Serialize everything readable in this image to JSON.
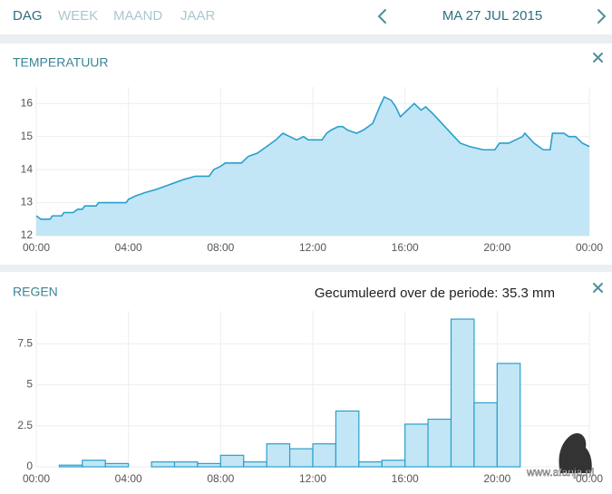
{
  "nav": {
    "tabs": [
      "DAG",
      "WEEK",
      "MAAND",
      "JAAR"
    ],
    "date": "MA 27 JUL 2015"
  },
  "chart_data": [
    {
      "type": "line",
      "title": "TEMPERATUUR",
      "color": "#2a9fcc",
      "fill": "#c2e6f5",
      "grid": true,
      "x": [
        0,
        0.2,
        0.6,
        0.7,
        1.1,
        1.2,
        1.6,
        1.8,
        2.0,
        2.1,
        2.6,
        2.7,
        3.9,
        4.0,
        4.3,
        4.7,
        5.2,
        5.6,
        6.0,
        6.4,
        6.9,
        7.5,
        7.7,
        8.0,
        8.2,
        8.9,
        9.2,
        9.6,
        10.0,
        10.4,
        10.7,
        11.0,
        11.3,
        11.6,
        11.8,
        12.4,
        12.6,
        12.8,
        13.1,
        13.3,
        13.5,
        13.9,
        14.2,
        14.6,
        14.9,
        15.1,
        15.4,
        15.6,
        15.8,
        16.1,
        16.4,
        16.7,
        16.9,
        17.2,
        17.6,
        18.0,
        18.4,
        18.8,
        19.4,
        19.9,
        20.1,
        20.5,
        20.8,
        21.1,
        21.2,
        21.6,
        22.0,
        22.3,
        22.4,
        22.9,
        23.1,
        23.4,
        23.7,
        24.0
      ],
      "series": [
        {
          "name": "Temperatuur",
          "color": "#2a9fcc",
          "values": [
            12.6,
            12.5,
            12.5,
            12.6,
            12.6,
            12.7,
            12.7,
            12.8,
            12.8,
            12.9,
            12.9,
            13.0,
            13.0,
            13.1,
            13.2,
            13.3,
            13.4,
            13.5,
            13.6,
            13.7,
            13.8,
            13.8,
            14.0,
            14.1,
            14.2,
            14.2,
            14.4,
            14.5,
            14.7,
            14.9,
            15.1,
            15.0,
            14.9,
            15.0,
            14.9,
            14.9,
            15.1,
            15.2,
            15.3,
            15.3,
            15.2,
            15.1,
            15.2,
            15.4,
            15.9,
            16.2,
            16.1,
            15.9,
            15.6,
            15.8,
            16.0,
            15.8,
            15.9,
            15.7,
            15.4,
            15.1,
            14.8,
            14.7,
            14.6,
            14.6,
            14.8,
            14.8,
            14.9,
            15.0,
            15.1,
            14.8,
            14.6,
            14.6,
            15.1,
            15.1,
            15.0,
            15.0,
            14.8,
            14.7
          ]
        }
      ],
      "xlim": [
        0,
        24
      ],
      "xticks": [
        {
          "value": 0,
          "label": "00:00"
        },
        {
          "value": 4,
          "label": "04:00"
        },
        {
          "value": 8,
          "label": "08:00"
        },
        {
          "value": 12,
          "label": "12:00"
        },
        {
          "value": 16,
          "label": "16:00"
        },
        {
          "value": 20,
          "label": "20:00"
        },
        {
          "value": 24,
          "label": "00:00"
        }
      ],
      "ylim": [
        12,
        16.5
      ],
      "yticks": [
        12,
        13,
        14,
        15,
        16
      ]
    },
    {
      "type": "histogram",
      "title": "REGEN",
      "subtitle": "Gecumuleerd over de periode: 35.3 mm",
      "color": "#2a9fcc",
      "fill": "#c2e6f5",
      "grid": true,
      "bins": [
        0,
        1,
        2,
        3,
        4,
        5,
        6,
        7,
        8,
        9,
        10,
        11,
        12,
        13,
        14,
        15,
        16,
        17,
        18,
        19,
        20,
        21,
        22,
        23,
        24
      ],
      "values": [
        0.0,
        0.1,
        0.4,
        0.2,
        0.0,
        0.3,
        0.3,
        0.2,
        0.7,
        0.3,
        1.4,
        1.1,
        1.4,
        3.4,
        0.3,
        0.4,
        2.6,
        2.9,
        9.0,
        3.9,
        6.3,
        0.0,
        0.0,
        0.0
      ],
      "xlim": [
        0,
        24
      ],
      "xticks": [
        {
          "value": 0,
          "label": "00:00"
        },
        {
          "value": 4,
          "label": "04:00"
        },
        {
          "value": 8,
          "label": "08:00"
        },
        {
          "value": 12,
          "label": "12:00"
        },
        {
          "value": 16,
          "label": "16:00"
        },
        {
          "value": 20,
          "label": "20:00"
        },
        {
          "value": 24,
          "label": "00:00"
        }
      ],
      "ylim": [
        0,
        9.5
      ],
      "yticks": [
        0,
        2.5,
        5,
        7.5
      ]
    }
  ],
  "watermark": "www.afanja.nl"
}
